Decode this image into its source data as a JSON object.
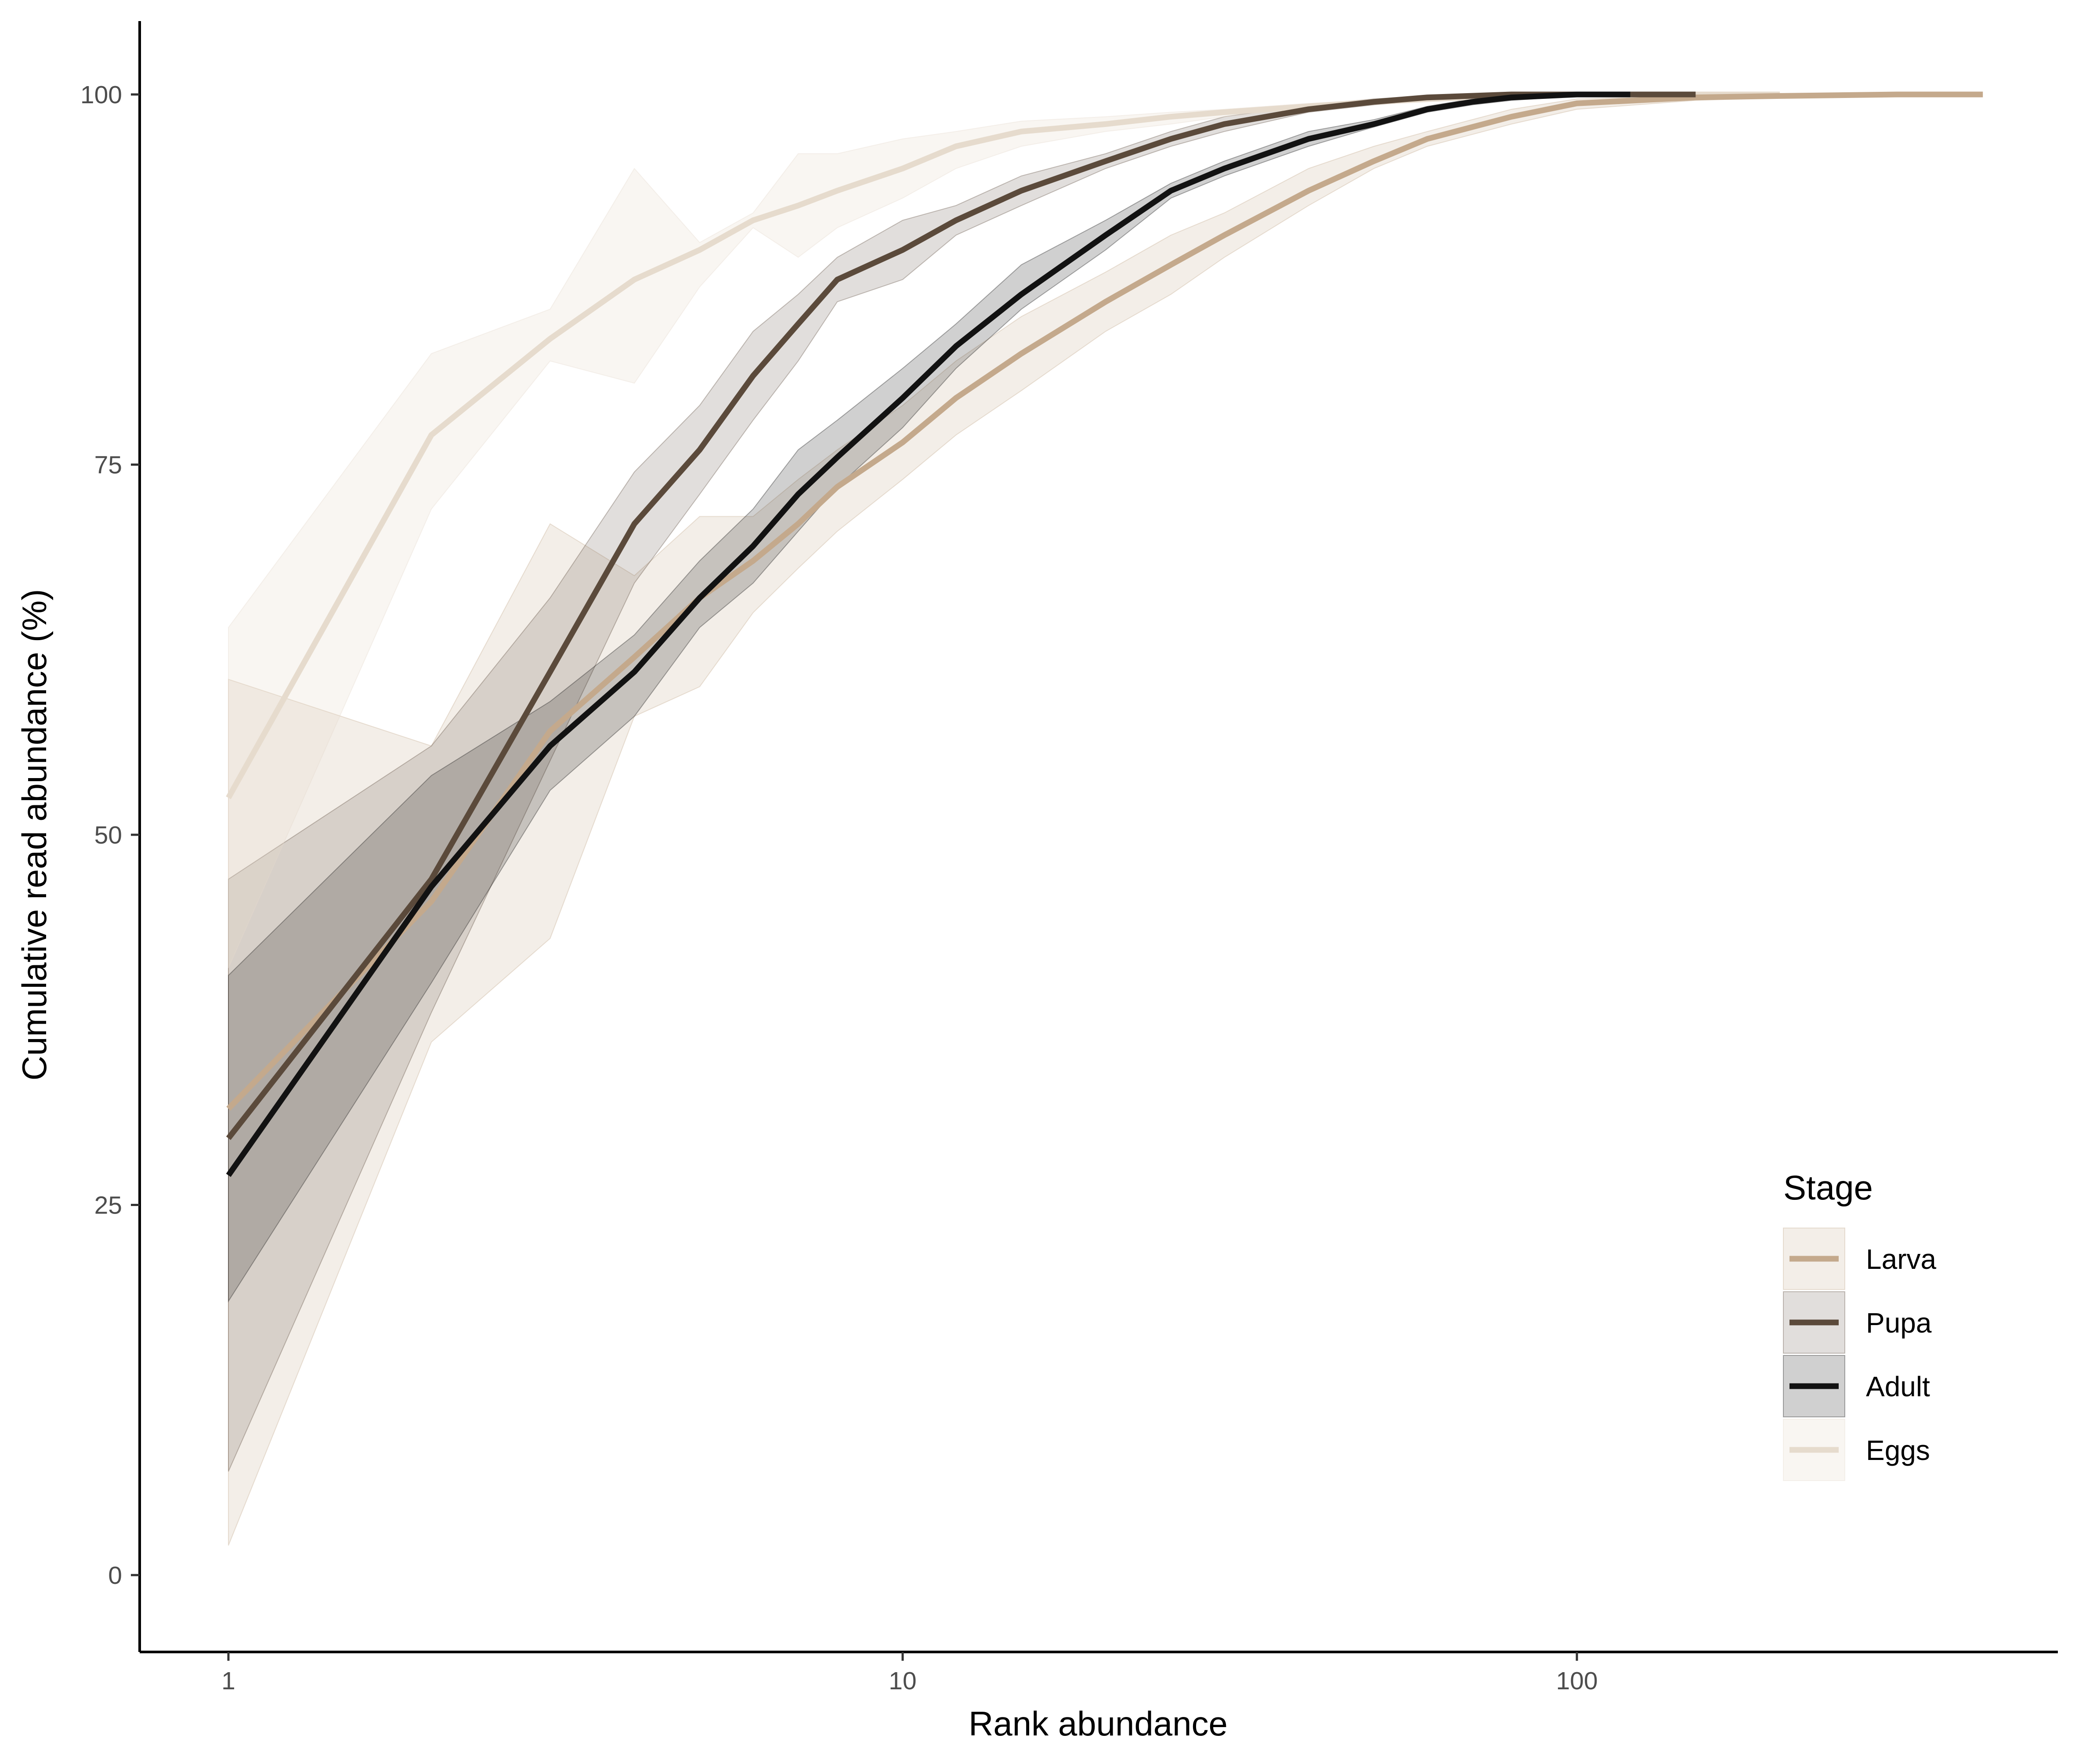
{
  "chart_data": {
    "type": "line",
    "title": "",
    "xlabel": "Rank abundance",
    "ylabel": "Cumulative read abundance (%)",
    "x_scale": "log10",
    "xlim": [
      0.75,
      520
    ],
    "ylim": [
      -5,
      105
    ],
    "x_ticks": [
      1,
      10,
      100
    ],
    "x_tick_labels": [
      "1",
      "10",
      "100"
    ],
    "y_ticks": [
      0,
      25,
      50,
      75,
      100
    ],
    "y_tick_labels": [
      "0",
      "25",
      "50",
      "75",
      "100"
    ],
    "grid": false,
    "legend": {
      "title": "Stage",
      "position": "right-bottom"
    },
    "series": [
      {
        "name": "Larva",
        "color": "#c4a98c",
        "fill_opacity": 0.2,
        "x": [
          1,
          2,
          3,
          4,
          5,
          6,
          7,
          8,
          10,
          12,
          15,
          20,
          25,
          30,
          40,
          50,
          60,
          80,
          100,
          150,
          200,
          300,
          400
        ],
        "y": [
          31.5,
          45.5,
          57,
          62,
          66,
          68.5,
          71,
          73.5,
          76.5,
          79.5,
          82.5,
          86,
          88.5,
          90.5,
          93.5,
          95.5,
          97,
          98.5,
          99.4,
          99.8,
          99.9,
          100,
          100
        ],
        "lower": [
          2,
          36,
          43,
          58,
          60,
          65,
          68,
          70.5,
          74,
          77,
          80,
          84,
          86.5,
          89,
          92.5,
          95,
          96.5,
          98,
          99,
          99.6,
          99.8,
          100,
          100
        ],
        "upper": [
          60.5,
          56,
          71,
          67.5,
          71.5,
          71.5,
          74,
          76,
          79,
          82,
          85,
          88,
          90.5,
          92,
          95,
          96.5,
          97.5,
          99,
          99.7,
          99.9,
          100,
          100,
          100
        ]
      },
      {
        "name": "Pupa",
        "color": "#5b4a3b",
        "fill_opacity": 0.18,
        "x": [
          1,
          2,
          3,
          4,
          5,
          6,
          7,
          8,
          10,
          12,
          15,
          20,
          25,
          30,
          40,
          50,
          60,
          80,
          100,
          150
        ],
        "y": [
          29.5,
          47,
          61,
          71,
          76,
          81,
          84.5,
          87.5,
          89.5,
          91.5,
          93.5,
          95.5,
          97,
          98,
          99,
          99.5,
          99.8,
          100,
          100,
          100
        ],
        "lower": [
          7,
          38,
          55,
          67,
          73,
          78,
          82,
          86,
          87.5,
          90.5,
          92.5,
          95,
          96.5,
          97.5,
          98.8,
          99.3,
          99.6,
          99.9,
          100,
          100
        ],
        "upper": [
          47,
          56,
          66,
          74.5,
          79,
          84,
          86.5,
          89,
          91.5,
          92.5,
          94.5,
          96,
          97.5,
          98.5,
          99.3,
          99.7,
          99.9,
          100,
          100,
          100
        ]
      },
      {
        "name": "Adult",
        "color": "#121212",
        "fill_opacity": 0.2,
        "x": [
          1,
          2,
          3,
          4,
          5,
          6,
          7,
          8,
          10,
          12,
          15,
          20,
          25,
          30,
          40,
          50,
          60,
          70,
          80,
          100,
          120
        ],
        "y": [
          27,
          46.5,
          56,
          61,
          66,
          69.5,
          73,
          75.5,
          79.5,
          83,
          86.5,
          90.5,
          93.5,
          95,
          97,
          98,
          99,
          99.5,
          99.8,
          100,
          100
        ],
        "lower": [
          18.5,
          40,
          53,
          58,
          64,
          67,
          70.5,
          73.5,
          77.5,
          81.5,
          85.5,
          89.5,
          93,
          94.5,
          96.5,
          97.8,
          98.8,
          99.3,
          99.6,
          99.9,
          100
        ],
        "upper": [
          40.5,
          54,
          59,
          63.5,
          68.5,
          72,
          76,
          78,
          81.5,
          84.5,
          88.5,
          91.5,
          94,
          95.5,
          97.5,
          98.3,
          99.2,
          99.7,
          99.9,
          100,
          100
        ]
      },
      {
        "name": "Eggs",
        "color": "#e6dbcd",
        "fill_opacity": 0.25,
        "x": [
          1,
          2,
          3,
          4,
          5,
          6,
          7,
          8,
          10,
          12,
          15,
          20,
          25,
          30,
          40,
          50,
          60,
          80,
          100,
          150,
          200
        ],
        "y": [
          52.5,
          77,
          83.5,
          87.5,
          89.5,
          91.5,
          92.5,
          93.5,
          95,
          96.5,
          97.5,
          98,
          98.5,
          98.8,
          99.2,
          99.5,
          99.7,
          99.9,
          100,
          100,
          100
        ],
        "lower": [
          41,
          72,
          82,
          80.5,
          87,
          91,
          89,
          91,
          93,
          95,
          96.5,
          97.5,
          98,
          98.5,
          99,
          99.3,
          99.5,
          99.8,
          100,
          100,
          100
        ],
        "upper": [
          64,
          82.5,
          85.5,
          95,
          90,
          92,
          96,
          96,
          97,
          97.5,
          98.2,
          98.5,
          98.8,
          99,
          99.4,
          99.6,
          99.8,
          100,
          100,
          100,
          100
        ]
      }
    ]
  }
}
